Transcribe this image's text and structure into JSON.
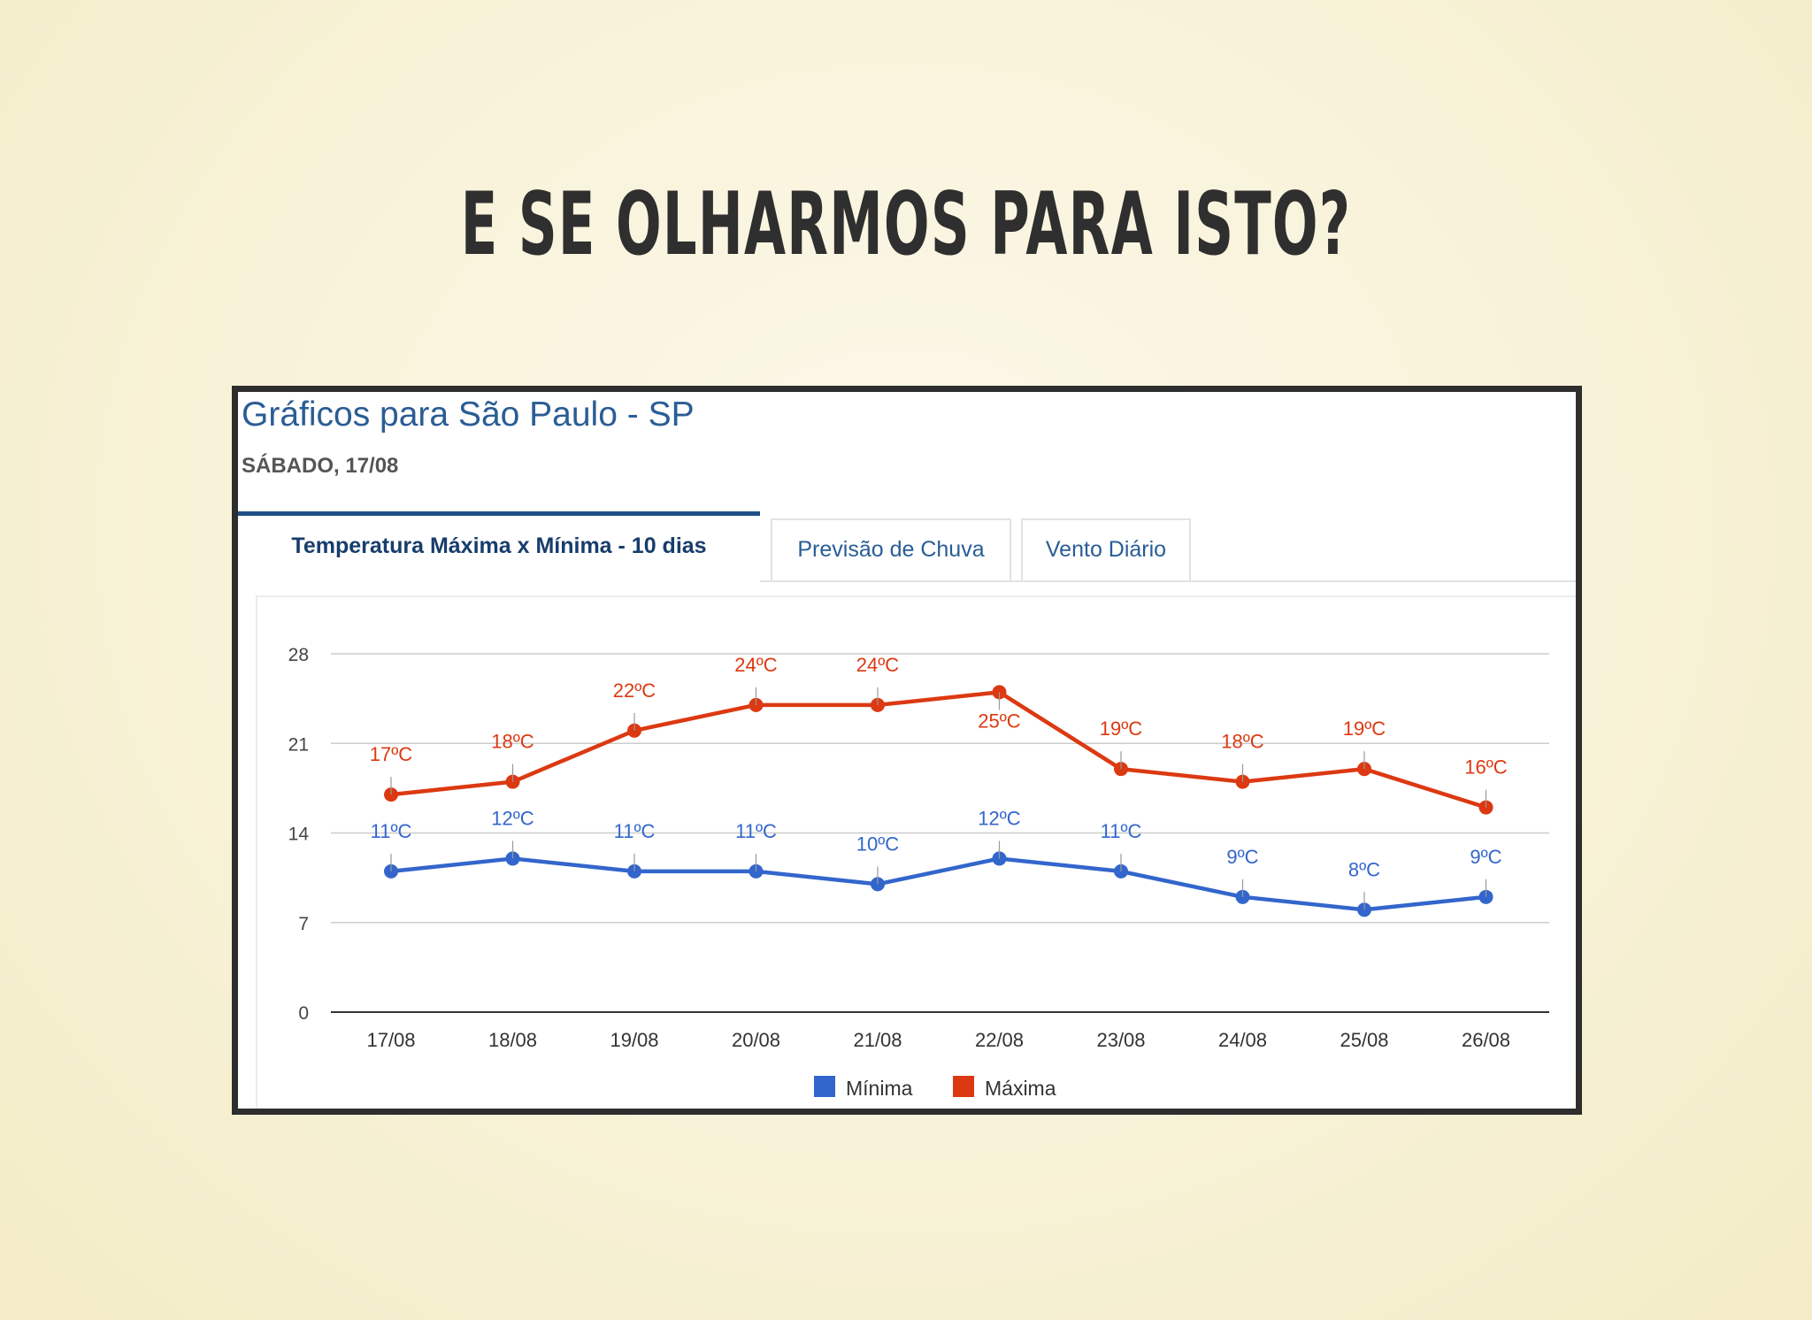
{
  "slide": {
    "title": "E SE OLHARMOS PARA ISTO?"
  },
  "widget": {
    "title": "Gráficos para São Paulo - SP",
    "date": "SÁBADO, 17/08"
  },
  "tabs": [
    {
      "label": "Temperatura Máxima x Mínima - 10 dias",
      "active": true
    },
    {
      "label": "Previsão de Chuva",
      "active": false
    },
    {
      "label": "Vento Diário",
      "active": false
    }
  ],
  "chart_data": {
    "type": "line",
    "categories": [
      "17/08",
      "18/08",
      "19/08",
      "20/08",
      "21/08",
      "22/08",
      "23/08",
      "24/08",
      "25/08",
      "26/08"
    ],
    "y_ticks": [
      "0",
      "7",
      "14",
      "21",
      "28"
    ],
    "ylim": [
      0,
      28
    ],
    "grid": true,
    "legend_position": "bottom",
    "series": [
      {
        "name": "Mínima",
        "color": "#3366cc",
        "values": [
          11,
          12,
          11,
          11,
          10,
          12,
          11,
          9,
          8,
          9
        ],
        "labels": [
          "11ºC",
          "12ºC",
          "11ºC",
          "11ºC",
          "10ºC",
          "12ºC",
          "11ºC",
          "9ºC",
          "8ºC",
          "9ºC"
        ]
      },
      {
        "name": "Máxima",
        "color": "#dc3912",
        "values": [
          17,
          18,
          22,
          24,
          24,
          25,
          19,
          18,
          19,
          16
        ],
        "labels": [
          "17ºC",
          "18ºC",
          "22ºC",
          "24ºC",
          "24ºC",
          "25ºC",
          "19ºC",
          "18ºC",
          "19ºC",
          "16ºC"
        ]
      }
    ]
  }
}
